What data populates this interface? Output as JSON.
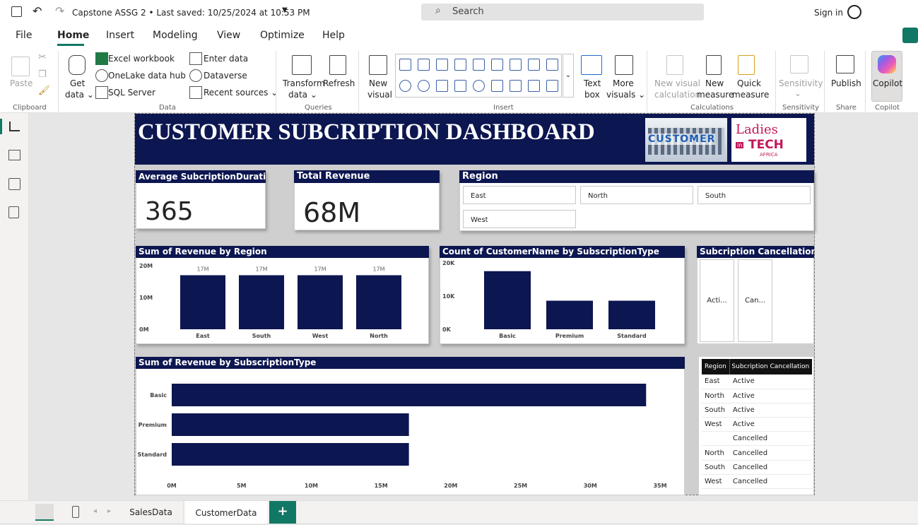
{
  "window": {
    "title": "Capstone ASSG 2 • Last saved: 10/25/2024 at 10:53 PM",
    "search_placeholder": "Search",
    "sign_in": "Sign in"
  },
  "menu": [
    "File",
    "Home",
    "Insert",
    "Modeling",
    "View",
    "Optimize",
    "Help"
  ],
  "ribbon": {
    "paste": "Paste",
    "get_data": [
      "Get",
      "data ⌄"
    ],
    "excel": "Excel workbook",
    "onelake": "OneLake data hub ⌄",
    "sql": "SQL Server",
    "enter_data": "Enter data",
    "dataverse": "Dataverse",
    "recent": "Recent sources ⌄",
    "transform": [
      "Transform",
      "data ⌄"
    ],
    "refresh": "Refresh",
    "new_visual": [
      "New",
      "visual"
    ],
    "text_box": [
      "Text",
      "box"
    ],
    "more_visuals": [
      "More",
      "visuals ⌄"
    ],
    "new_visual_calc": [
      "New visual",
      "calculation"
    ],
    "new_measure": [
      "New",
      "measure"
    ],
    "quick_measure": [
      "Quick",
      "measure"
    ],
    "sensitivity": [
      "Sensitivity",
      "⌄"
    ],
    "publish": "Publish",
    "copilot": "Copilot",
    "groups": [
      "Clipboard",
      "Data",
      "Queries",
      "Insert",
      "Calculations",
      "Sensitivity",
      "Share",
      "Copilot"
    ]
  },
  "dashboard": {
    "title": "CUSTOMER SUBCRIPTION DASHBOARD",
    "logo_customer": "CUSTOMER",
    "logo_ladies": [
      "Ladies",
      "in",
      "TECH",
      "AFRICA"
    ],
    "kpi1": {
      "label": "Average SubcriptionDuration",
      "value": "365"
    },
    "kpi2": {
      "label": "Total Revenue",
      "value": "68M"
    },
    "region": {
      "label": "Region",
      "options": [
        "East",
        "North",
        "South",
        "West"
      ]
    },
    "cancel_slicer": {
      "label": "Subcription Cancellation",
      "options": [
        "Acti...",
        "Can..."
      ]
    },
    "table": {
      "headers": [
        "Region",
        "Subcription Cancellation"
      ],
      "rows": [
        [
          "East",
          "Active"
        ],
        [
          "North",
          "Active"
        ],
        [
          "South",
          "Active"
        ],
        [
          "West",
          "Active"
        ],
        [
          "",
          "Cancelled"
        ],
        [
          "North",
          "Cancelled"
        ],
        [
          "South",
          "Cancelled"
        ],
        [
          "West",
          "Cancelled"
        ]
      ]
    }
  },
  "chart_data": [
    {
      "type": "bar",
      "title": "Sum of Revenue by Region",
      "categories": [
        "East",
        "South",
        "West",
        "North"
      ],
      "values": [
        17,
        17,
        17,
        17
      ],
      "data_labels": [
        "17M",
        "17M",
        "17M",
        "17M"
      ],
      "yticks": [
        "0M",
        "10M",
        "20M"
      ],
      "ylim": [
        0,
        20
      ],
      "color": "#0c1650"
    },
    {
      "type": "bar",
      "title": "Count of CustomerName by SubscriptionType",
      "categories": [
        "Basic",
        "Premium",
        "Standard"
      ],
      "values": [
        17500,
        8600,
        8600
      ],
      "yticks": [
        "0K",
        "10K",
        "20K"
      ],
      "ylim": [
        0,
        20000
      ],
      "color": "#0c1650"
    },
    {
      "type": "bar",
      "orientation": "horizontal",
      "title": "Sum of Revenue by SubscriptionType",
      "categories": [
        "Basic",
        "Premium",
        "Standard"
      ],
      "values": [
        34,
        17,
        17
      ],
      "xticks": [
        "0M",
        "5M",
        "10M",
        "15M",
        "20M",
        "25M",
        "30M",
        "35M"
      ],
      "xlim": [
        0,
        35
      ],
      "color": "#0c1650"
    }
  ],
  "tabs": [
    "SalesData",
    "CustomerData"
  ],
  "add_tab": "+"
}
